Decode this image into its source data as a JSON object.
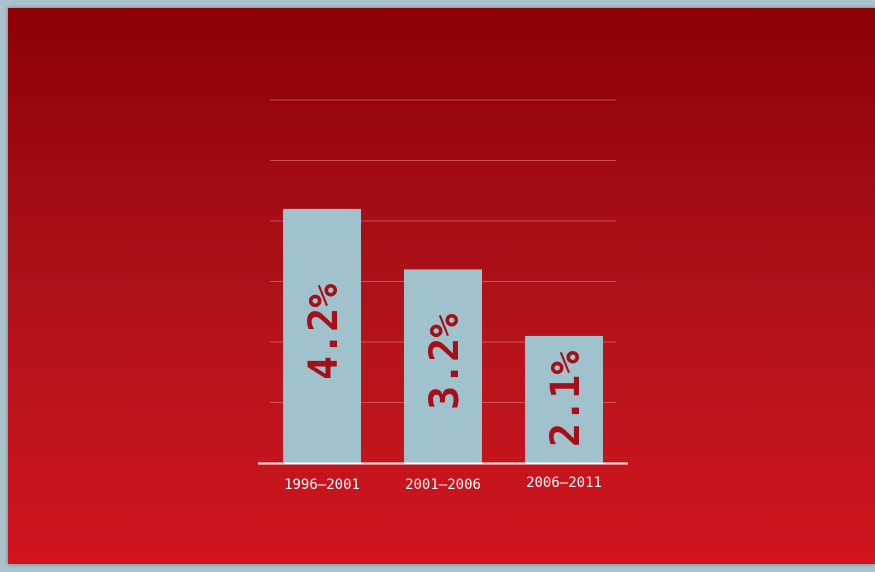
{
  "chart_data": {
    "type": "bar",
    "categories": [
      "1996–2001",
      "2001–2006",
      "2006–2011"
    ],
    "values": [
      4.2,
      3.2,
      2.1
    ],
    "labels": [
      "4.2%",
      "3.2%",
      "2.1%"
    ],
    "title": "",
    "xlabel": "",
    "ylabel": "",
    "ylim": [
      0,
      6
    ],
    "grid": true,
    "colors": {
      "bar": "#9fc2cc",
      "bar_label": "#a50f17",
      "grid": "#d86a6f",
      "axis": "#ffffff",
      "category_text": "#ffffff"
    }
  }
}
